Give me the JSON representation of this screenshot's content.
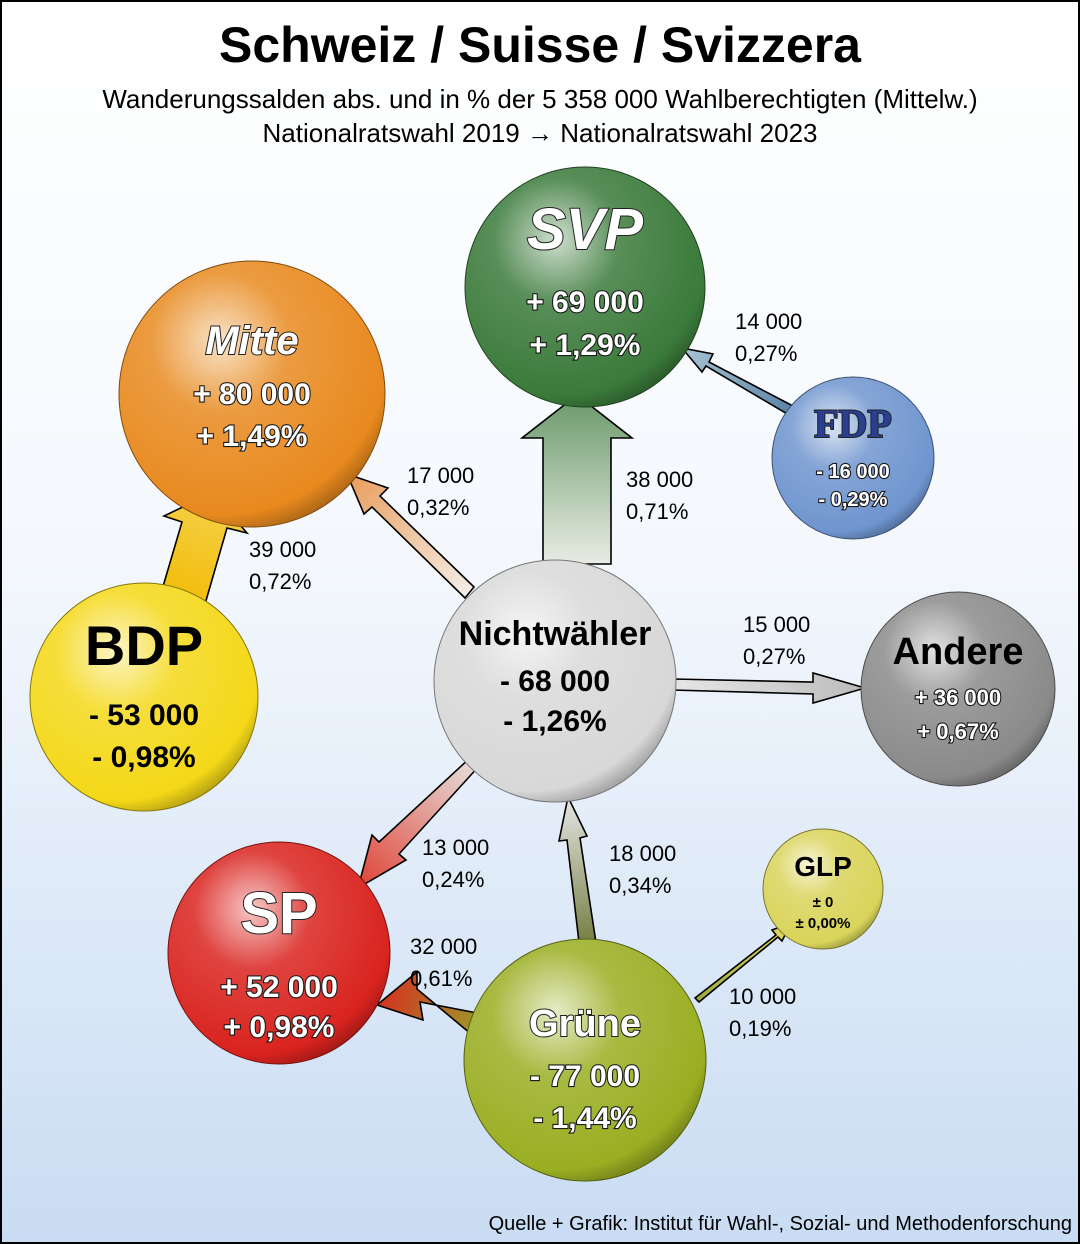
{
  "title": "Schweiz / Suisse / Svizzera",
  "subtitle_line1": "Wanderungssalden abs. und in % der 5 358 000 Wahlberechtigten (Mittelw.)",
  "subtitle_line2": "Nationalratswahl 2019 → Nationalratswahl 2023",
  "source": "Quelle + Grafik: Institut für Wahl-, Sozial- und Methodenforschung",
  "colors": {
    "svp": "#3a7a3a",
    "mitte": "#e8891e",
    "fdp": "#6f95cf",
    "bdp": "#f4d818",
    "nichtwaehler": "#d8d8d8",
    "andere": "#8a8a8a",
    "sp": "#d9231e",
    "glp": "#d9d45a",
    "gruene": "#9aae22"
  },
  "nodes": [
    {
      "id": "svp",
      "label": "SVP",
      "abs": "+ 69 000",
      "pct": "+ 1,29%"
    },
    {
      "id": "mitte",
      "label": "Mitte",
      "abs": "+ 80 000",
      "pct": "+ 1,49%"
    },
    {
      "id": "fdp",
      "label": "FDP",
      "abs": "- 16 000",
      "pct": "- 0,29%"
    },
    {
      "id": "bdp",
      "label": "BDP",
      "abs": "- 53 000",
      "pct": "- 0,98%"
    },
    {
      "id": "nichtwaehler",
      "label": "Nichtwähler",
      "abs": "- 68 000",
      "pct": "- 1,26%"
    },
    {
      "id": "andere",
      "label": "Andere",
      "abs": "+ 36 000",
      "pct": "+ 0,67%"
    },
    {
      "id": "sp",
      "label": "SP",
      "abs": "+ 52 000",
      "pct": "+ 0,98%"
    },
    {
      "id": "glp",
      "label": "GLP",
      "abs": "± 0",
      "pct": "± 0,00%"
    },
    {
      "id": "gruene",
      "label": "Grüne",
      "abs": "- 77 000",
      "pct": "- 1,44%"
    }
  ],
  "flows": [
    {
      "from": "fdp",
      "to": "svp",
      "abs": "14 000",
      "pct": "0,27%"
    },
    {
      "from": "nichtwaehler",
      "to": "mitte",
      "abs": "17 000",
      "pct": "0,32%"
    },
    {
      "from": "nichtwaehler",
      "to": "svp",
      "abs": "38 000",
      "pct": "0,71%"
    },
    {
      "from": "bdp",
      "to": "mitte",
      "abs": "39 000",
      "pct": "0,72%"
    },
    {
      "from": "nichtwaehler",
      "to": "andere",
      "abs": "15 000",
      "pct": "0,27%"
    },
    {
      "from": "nichtwaehler",
      "to": "sp",
      "abs": "13 000",
      "pct": "0,24%"
    },
    {
      "from": "gruene",
      "to": "nichtwaehler",
      "abs": "18 000",
      "pct": "0,34%"
    },
    {
      "from": "gruene",
      "to": "sp",
      "abs": "32 000",
      "pct": "0,61%"
    },
    {
      "from": "gruene",
      "to": "glp",
      "abs": "10 000",
      "pct": "0,19%"
    }
  ]
}
